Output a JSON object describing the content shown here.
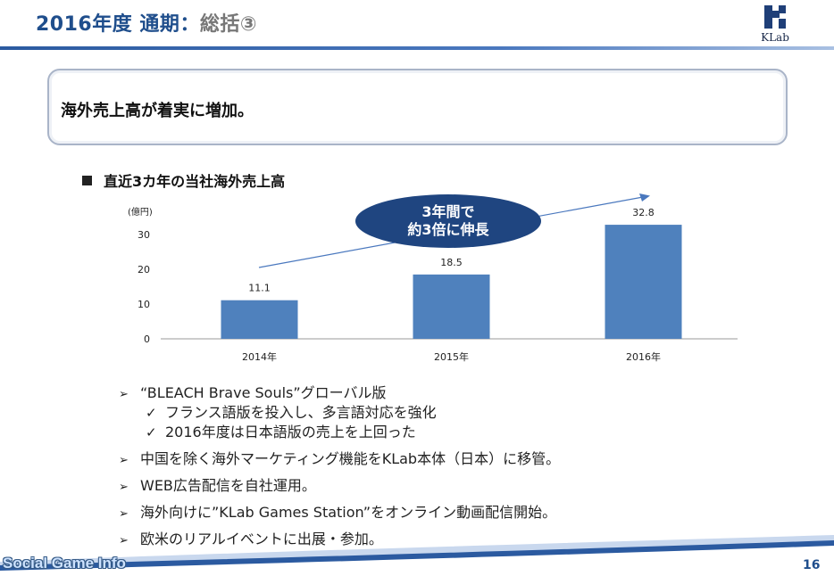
{
  "header": {
    "title_main": "2016年度 通期：",
    "title_suffix": "総括③",
    "logo_text": "KLab"
  },
  "callout": {
    "text": "海外売上高が着実に増加。"
  },
  "section": {
    "heading": "直近3カ年の当社海外売上高"
  },
  "bubble": {
    "line1": "3年間で",
    "line2": "約3倍に伸長"
  },
  "chart_data": {
    "type": "bar",
    "title": "",
    "ylabel": "(億円)",
    "xlabel": "",
    "categories": [
      "2014年",
      "2015年",
      "2016年"
    ],
    "values": [
      11.1,
      18.5,
      32.8
    ],
    "data_labels": [
      "11.1",
      "18.5",
      "32.8"
    ],
    "ylim": [
      0,
      35
    ],
    "yticks": [
      0,
      10,
      20,
      30
    ],
    "grid": false,
    "bar_color": "#4f81bd",
    "trend_arrow": true
  },
  "bullets": [
    {
      "level": 1,
      "text": "“BLEACH Brave Souls”グローバル版"
    },
    {
      "level": 2,
      "text": "フランス語版を投入し、多言語対応を強化"
    },
    {
      "level": 2,
      "text": "2016年度は日本語版の売上を上回った"
    },
    {
      "level": 1,
      "text": "中国を除く海外マーケティング機能をKLab本体（日本）に移管。"
    },
    {
      "level": 1,
      "text": "WEB広告配信を自社運用。"
    },
    {
      "level": 1,
      "text": "海外向けに”KLab Games Station”をオンライン動画配信開始。"
    },
    {
      "level": 1,
      "text": "欧米のリアルイベントに出展・参加。"
    }
  ],
  "footer": {
    "watermark": "Social Game Info",
    "page_number": "16"
  },
  "colors": {
    "brand": "#1f4e8c",
    "bubble": "#1f4580",
    "bar": "#4f81bd"
  }
}
